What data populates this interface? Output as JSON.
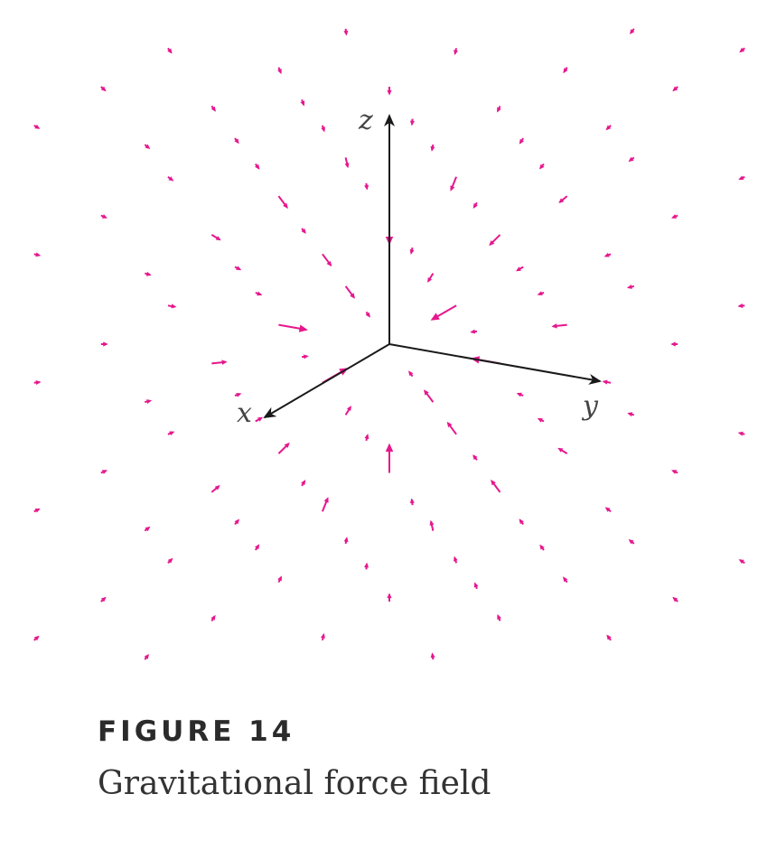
{
  "figure": {
    "label": "FIGURE 14",
    "caption": "Gravitational force field"
  },
  "axes": {
    "x_label": "x",
    "y_label": "y",
    "z_label": "z"
  },
  "colors": {
    "field_vectors": "#e6178d",
    "axes": "#1a1a1a",
    "text": "#333333"
  }
}
